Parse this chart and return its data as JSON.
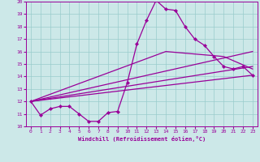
{
  "xlabel": "Windchill (Refroidissement éolien,°C)",
  "xlim": [
    -0.5,
    23.5
  ],
  "ylim": [
    10,
    20
  ],
  "xticks": [
    0,
    1,
    2,
    3,
    4,
    5,
    6,
    7,
    8,
    9,
    10,
    11,
    12,
    13,
    14,
    15,
    16,
    17,
    18,
    19,
    20,
    21,
    22,
    23
  ],
  "yticks": [
    10,
    11,
    12,
    13,
    14,
    15,
    16,
    17,
    18,
    19,
    20
  ],
  "bg_color": "#cce8e8",
  "grid_color": "#99cccc",
  "line_color": "#990099",
  "line1_x": [
    0,
    1,
    2,
    3,
    4,
    5,
    6,
    7,
    8,
    9,
    10,
    11,
    12,
    13,
    14,
    15,
    16,
    17,
    18,
    19,
    20,
    21,
    22,
    23
  ],
  "line1_y": [
    12.0,
    10.9,
    11.4,
    11.6,
    11.6,
    11.0,
    10.4,
    10.4,
    11.1,
    11.2,
    13.5,
    16.6,
    18.5,
    20.1,
    19.4,
    19.3,
    18.0,
    17.0,
    16.5,
    15.6,
    14.8,
    14.6,
    14.8,
    14.1
  ],
  "line2_x": [
    0,
    23
  ],
  "line2_y": [
    12.0,
    14.1
  ],
  "line3_x": [
    0,
    23
  ],
  "line3_y": [
    12.0,
    14.8
  ],
  "line4_x": [
    0,
    23
  ],
  "line4_y": [
    12.0,
    16.0
  ],
  "line5_x": [
    0,
    14,
    20,
    23
  ],
  "line5_y": [
    12.0,
    16.0,
    15.6,
    14.6
  ]
}
